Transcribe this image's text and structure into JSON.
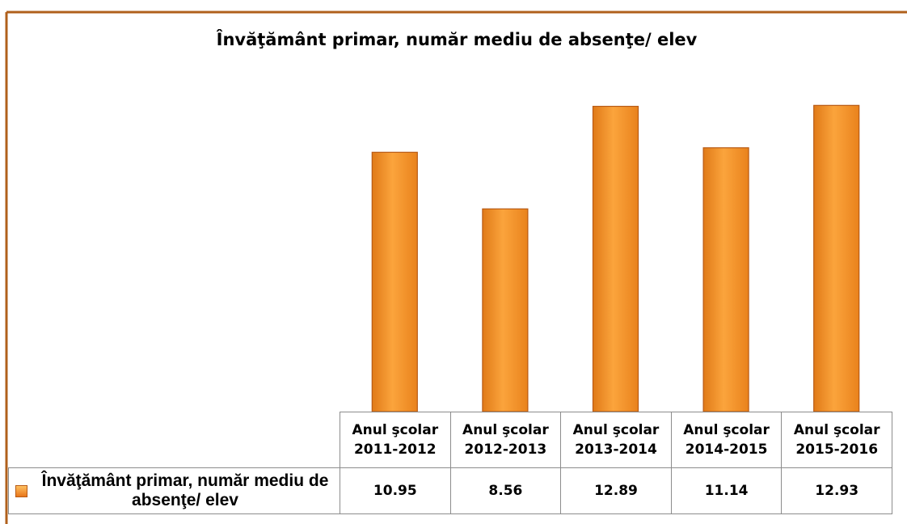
{
  "chart_data": {
    "type": "bar",
    "title": "Învăţământ primar, număr mediu de absenţe/ elev",
    "categories": [
      "Anul şcolar 2011-2012",
      "Anul şcolar 2012-2013",
      "Anul şcolar 2013-2014",
      "Anul şcolar 2014-2015",
      "Anul şcolar 2015-2016"
    ],
    "series": [
      {
        "name": "Învăţământ primar, număr mediu de absenţe/ elev",
        "color": "#f7921e",
        "values": [
          10.95,
          8.56,
          12.89,
          11.14,
          12.93
        ]
      }
    ],
    "ylim": [
      0,
      14
    ],
    "grid": false,
    "legend": "left"
  }
}
